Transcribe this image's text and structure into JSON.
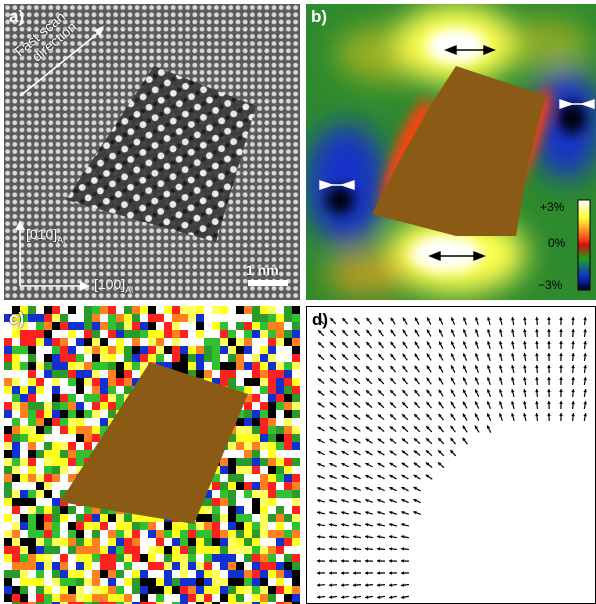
{
  "panels": {
    "a": {
      "label": "a)",
      "scan_text_1": "Fast scan",
      "scan_text_2": "direction",
      "axis_y_label": "[010]",
      "axis_y_sub": "Al",
      "axis_x_label": "[100]",
      "axis_x_sub": "Al",
      "scalebar_label": "1 nm"
    },
    "b": {
      "label": "b)",
      "colorbar_ticks": [
        "+3%",
        "0%",
        "−3%"
      ]
    },
    "c": {
      "label": "c)"
    },
    "d": {
      "label": "d)"
    }
  },
  "colors": {
    "precipitate": "#8b5a14",
    "map_high": "#ffffff",
    "map_mid": "#2a8a2a",
    "map_low": "#0a20c0"
  }
}
